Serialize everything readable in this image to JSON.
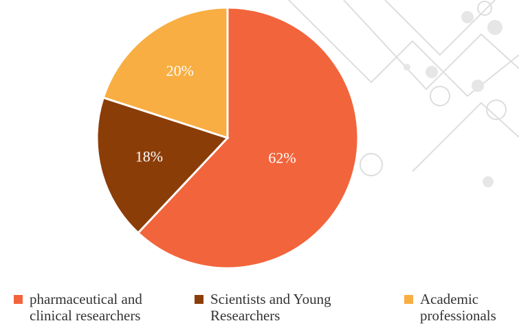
{
  "chart_data": {
    "type": "pie",
    "categories": [
      "pharmaceutical and clinical researchers",
      "Scientists and Young Researchers",
      "Academic professionals"
    ],
    "values": [
      62,
      18,
      20
    ],
    "value_labels": [
      "62%",
      "18%",
      "20%"
    ],
    "colors": [
      "#f2643b",
      "#8b3d08",
      "#f8ae42"
    ]
  }
}
